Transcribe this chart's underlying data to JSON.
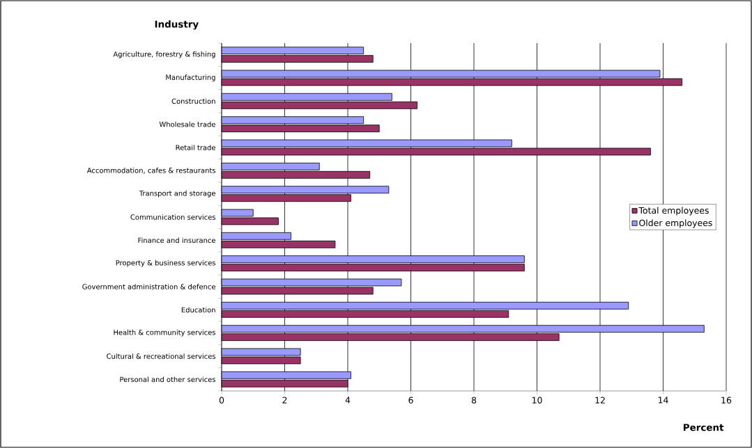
{
  "chart_data": {
    "type": "bar",
    "orientation": "horizontal",
    "xlabel": "Percent",
    "ylabel": "Industry",
    "categories": [
      "Agriculture, forestry & fishing",
      "Manufacturing",
      "Construction",
      "Wholesale trade",
      "Retail trade",
      "Accommodation, cafes & restaurants",
      "Transport and storage",
      "Communication services",
      "Finance and insurance",
      "Property & business services",
      "Government administration & defence",
      "Education",
      "Health & community services",
      "Cultural & recreational services",
      "Personal and other services"
    ],
    "series": [
      {
        "name": "Total employees",
        "color": "#993366",
        "values": [
          4.8,
          14.6,
          6.2,
          5.0,
          13.6,
          4.7,
          4.1,
          1.8,
          3.6,
          9.6,
          4.8,
          9.1,
          10.7,
          2.5,
          4.0
        ]
      },
      {
        "name": "Older employees",
        "color": "#9999ff",
        "values": [
          4.5,
          13.9,
          5.4,
          4.5,
          9.2,
          3.1,
          5.3,
          1.0,
          2.2,
          9.6,
          5.7,
          12.9,
          15.3,
          2.5,
          4.1
        ]
      }
    ],
    "xlim": [
      0,
      16
    ],
    "xticks": [
      0,
      2,
      4,
      6,
      8,
      10,
      12,
      14,
      16
    ],
    "grid": "x",
    "legend": "right"
  }
}
